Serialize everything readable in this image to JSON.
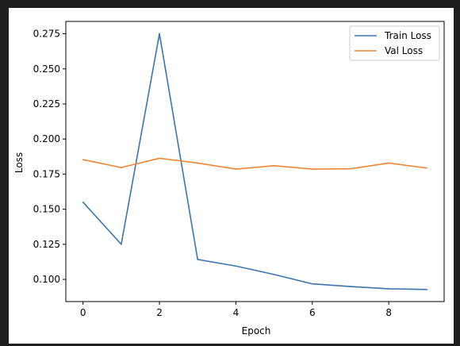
{
  "chart_data": {
    "type": "line",
    "title": "",
    "xlabel": "Epoch",
    "ylabel": "Loss",
    "x": [
      0,
      1,
      2,
      3,
      4,
      5,
      6,
      7,
      8,
      9
    ],
    "xlim": [
      -0.45,
      9.45
    ],
    "ylim": [
      0.0842,
      0.2838
    ],
    "xticks": [
      0,
      2,
      4,
      6,
      8
    ],
    "yticks": [
      0.1,
      0.125,
      0.15,
      0.175,
      0.2,
      0.225,
      0.25,
      0.275
    ],
    "xtick_labels": [
      "0",
      "2",
      "4",
      "6",
      "8"
    ],
    "ytick_labels": [
      "0.100",
      "0.125",
      "0.150",
      "0.175",
      "0.200",
      "0.225",
      "0.250",
      "0.275"
    ],
    "grid": false,
    "legend_position": "top-right",
    "series": [
      {
        "name": "Train Loss",
        "color": "#3b75af",
        "values": [
          0.155,
          0.125,
          0.275,
          0.1142,
          0.1095,
          0.1035,
          0.0968,
          0.0949,
          0.0933,
          0.0928
        ]
      },
      {
        "name": "Val Loss",
        "color": "#ef8636",
        "values": [
          0.1853,
          0.1797,
          0.1863,
          0.1829,
          0.1786,
          0.181,
          0.1786,
          0.1788,
          0.1829,
          0.1793
        ]
      }
    ]
  }
}
